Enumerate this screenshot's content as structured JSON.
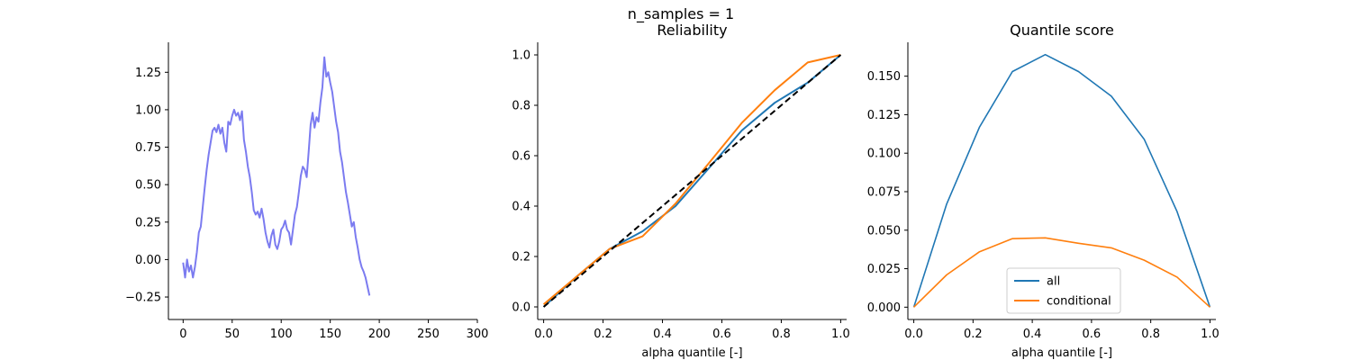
{
  "suptitle": "n_samples = 1",
  "chart_data": [
    {
      "type": "line",
      "title": "",
      "xlabel": "",
      "ylabel": "",
      "xlim": [
        -15,
        300
      ],
      "ylim": [
        -0.4,
        1.45
      ],
      "xticks": [
        0,
        50,
        100,
        150,
        200,
        250,
        300
      ],
      "xtick_labels": [
        "0",
        "50",
        "100",
        "150",
        "200",
        "250",
        "300"
      ],
      "yticks": [
        -0.25,
        0,
        0.25,
        0.5,
        0.75,
        1.0,
        1.25
      ],
      "ytick_labels": [
        "−0.25",
        "0.00",
        "0.25",
        "0.50",
        "0.75",
        "1.00",
        "1.25"
      ],
      "grid": false,
      "series": [
        {
          "color": "#7b7bf0",
          "x": [
            0,
            2,
            4,
            6,
            8,
            10,
            12,
            14,
            16,
            18,
            20,
            22,
            24,
            26,
            28,
            30,
            32,
            34,
            36,
            38,
            40,
            42,
            44,
            46,
            48,
            50,
            52,
            54,
            56,
            58,
            60,
            62,
            64,
            66,
            68,
            70,
            72,
            74,
            76,
            78,
            80,
            82,
            84,
            86,
            88,
            90,
            92,
            94,
            96,
            98,
            100,
            102,
            104,
            106,
            108,
            110,
            112,
            114,
            116,
            118,
            120,
            122,
            124,
            126,
            128,
            130,
            132,
            134,
            136,
            138,
            140,
            142,
            144,
            146,
            148,
            150,
            152,
            154,
            156,
            158,
            160,
            162,
            164,
            166,
            168,
            170,
            172,
            174,
            176,
            178,
            180,
            182,
            184,
            186,
            188,
            190
          ],
          "y": [
            -0.02,
            -0.12,
            0.0,
            -0.08,
            -0.04,
            -0.12,
            -0.05,
            0.05,
            0.18,
            0.22,
            0.35,
            0.48,
            0.6,
            0.7,
            0.78,
            0.86,
            0.88,
            0.85,
            0.9,
            0.84,
            0.88,
            0.78,
            0.72,
            0.92,
            0.9,
            0.96,
            1.0,
            0.96,
            0.98,
            0.93,
            0.99,
            0.8,
            0.72,
            0.62,
            0.55,
            0.45,
            0.33,
            0.3,
            0.32,
            0.28,
            0.34,
            0.27,
            0.18,
            0.12,
            0.08,
            0.16,
            0.2,
            0.1,
            0.07,
            0.12,
            0.2,
            0.22,
            0.26,
            0.2,
            0.18,
            0.1,
            0.2,
            0.3,
            0.35,
            0.45,
            0.56,
            0.62,
            0.6,
            0.55,
            0.72,
            0.9,
            0.98,
            0.88,
            0.95,
            0.92,
            1.05,
            1.15,
            1.35,
            1.22,
            1.25,
            1.18,
            1.12,
            1.02,
            0.92,
            0.85,
            0.72,
            0.65,
            0.55,
            0.45,
            0.38,
            0.3,
            0.22,
            0.25,
            0.15,
            0.08,
            0.0,
            -0.05,
            -0.08,
            -0.12,
            -0.18,
            -0.24
          ]
        }
      ]
    },
    {
      "type": "line",
      "title": "Reliability",
      "xlabel": "alpha quantile [-]",
      "ylabel": "",
      "xlim": [
        -0.02,
        1.02
      ],
      "ylim": [
        -0.05,
        1.05
      ],
      "xticks": [
        0,
        0.2,
        0.4,
        0.6,
        0.8,
        1.0
      ],
      "xtick_labels": [
        "0.0",
        "0.2",
        "0.4",
        "0.6",
        "0.8",
        "1.0"
      ],
      "yticks": [
        0,
        0.2,
        0.4,
        0.6,
        0.8,
        1.0
      ],
      "ytick_labels": [
        "0.0",
        "0.2",
        "0.4",
        "0.6",
        "0.8",
        "1.0"
      ],
      "grid": false,
      "series": [
        {
          "color": "#1f77b4",
          "dash": false,
          "x": [
            0,
            0.111,
            0.222,
            0.333,
            0.444,
            0.556,
            0.667,
            0.778,
            0.889,
            1.0
          ],
          "y": [
            0.0,
            0.12,
            0.23,
            0.3,
            0.4,
            0.55,
            0.7,
            0.81,
            0.89,
            1.0
          ]
        },
        {
          "color": "#ff7f0e",
          "dash": false,
          "x": [
            0,
            0.111,
            0.222,
            0.333,
            0.444,
            0.556,
            0.667,
            0.778,
            0.889,
            1.0
          ],
          "y": [
            0.01,
            0.12,
            0.23,
            0.28,
            0.41,
            0.57,
            0.73,
            0.86,
            0.97,
            1.0
          ]
        },
        {
          "color": "#000000",
          "dash": true,
          "x": [
            0,
            1.0
          ],
          "y": [
            0,
            1.0
          ]
        }
      ]
    },
    {
      "type": "line",
      "title": "Quantile score",
      "xlabel": "alpha quantile [-]",
      "ylabel": "",
      "xlim": [
        -0.02,
        1.02
      ],
      "ylim": [
        -0.008,
        0.172
      ],
      "xticks": [
        0,
        0.2,
        0.4,
        0.6,
        0.8,
        1.0
      ],
      "xtick_labels": [
        "0.0",
        "0.2",
        "0.4",
        "0.6",
        "0.8",
        "1.0"
      ],
      "yticks": [
        0,
        0.025,
        0.05,
        0.075,
        0.1,
        0.125,
        0.15
      ],
      "ytick_labels": [
        "0.000",
        "0.025",
        "0.050",
        "0.075",
        "0.100",
        "0.125",
        "0.150"
      ],
      "grid": false,
      "legend": {
        "position": "lower-center",
        "entries": [
          "all",
          "conditional"
        ]
      },
      "series": [
        {
          "name": "all",
          "color": "#1f77b4",
          "x": [
            0,
            0.111,
            0.222,
            0.333,
            0.444,
            0.556,
            0.667,
            0.778,
            0.889,
            1.0
          ],
          "y": [
            0.0,
            0.067,
            0.117,
            0.153,
            0.164,
            0.153,
            0.137,
            0.109,
            0.062,
            0.0
          ]
        },
        {
          "name": "conditional",
          "color": "#ff7f0e",
          "x": [
            0,
            0.111,
            0.222,
            0.333,
            0.444,
            0.556,
            0.667,
            0.778,
            0.889,
            1.0
          ],
          "y": [
            0.0,
            0.021,
            0.036,
            0.0445,
            0.045,
            0.0415,
            0.0385,
            0.0305,
            0.0195,
            0.0
          ]
        }
      ]
    }
  ]
}
